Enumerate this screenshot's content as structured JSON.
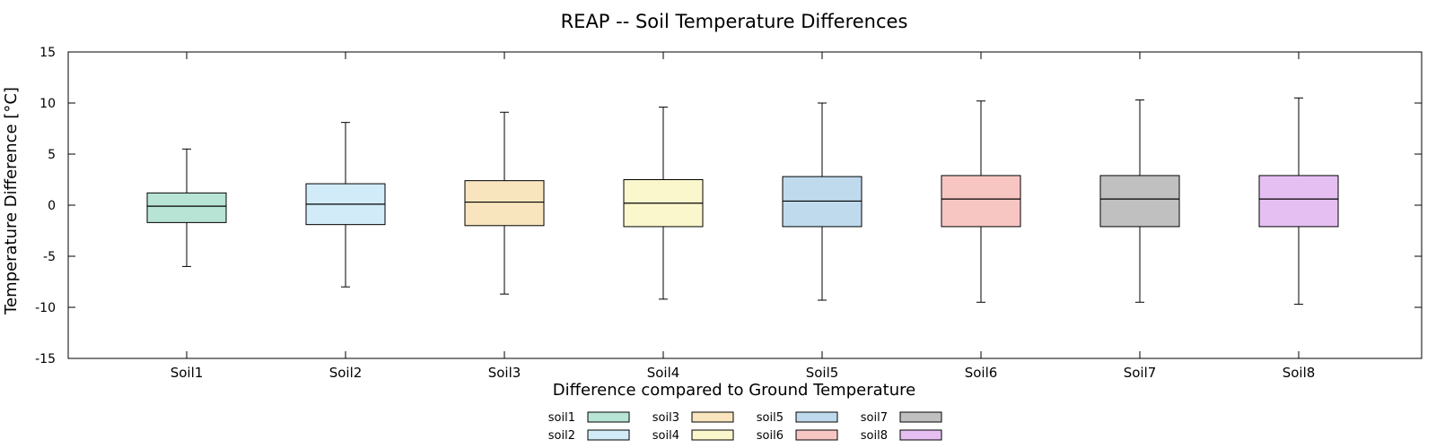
{
  "chart_data": {
    "type": "box",
    "title": "REAP -- Soil Temperature Differences",
    "xlabel": "Difference compared to Ground Temperature",
    "ylabel": "Temperature Difference [°C]",
    "ylim": [
      -15,
      15
    ],
    "yticks": [
      -15,
      -10,
      -5,
      0,
      5,
      10,
      15
    ],
    "grid": false,
    "legend_position": "bottom-center",
    "categories": [
      "Soil1",
      "Soil2",
      "Soil3",
      "Soil4",
      "Soil5",
      "Soil6",
      "Soil7",
      "Soil8"
    ],
    "series": [
      {
        "name": "soil1",
        "color": "#b7e4d4",
        "whisker_low": -6.0,
        "q1": -1.7,
        "median": -0.1,
        "q3": 1.2,
        "whisker_high": 5.5
      },
      {
        "name": "soil2",
        "color": "#d2ebf8",
        "whisker_low": -8.0,
        "q1": -1.9,
        "median": 0.1,
        "q3": 2.1,
        "whisker_high": 8.1
      },
      {
        "name": "soil3",
        "color": "#f8e5bd",
        "whisker_low": -8.7,
        "q1": -2.0,
        "median": 0.3,
        "q3": 2.4,
        "whisker_high": 9.1
      },
      {
        "name": "soil4",
        "color": "#fbf7cd",
        "whisker_low": -9.2,
        "q1": -2.1,
        "median": 0.2,
        "q3": 2.5,
        "whisker_high": 9.6
      },
      {
        "name": "soil5",
        "color": "#bfdaed",
        "whisker_low": -9.3,
        "q1": -2.1,
        "median": 0.4,
        "q3": 2.8,
        "whisker_high": 10.0
      },
      {
        "name": "soil6",
        "color": "#f7c6c3",
        "whisker_low": -9.5,
        "q1": -2.1,
        "median": 0.6,
        "q3": 2.9,
        "whisker_high": 10.2
      },
      {
        "name": "soil7",
        "color": "#c0c0c0",
        "whisker_low": -9.5,
        "q1": -2.1,
        "median": 0.6,
        "q3": 2.9,
        "whisker_high": 10.3
      },
      {
        "name": "soil8",
        "color": "#e5bff2",
        "whisker_low": -9.7,
        "q1": -2.1,
        "median": 0.6,
        "q3": 2.9,
        "whisker_high": 10.5
      }
    ]
  }
}
